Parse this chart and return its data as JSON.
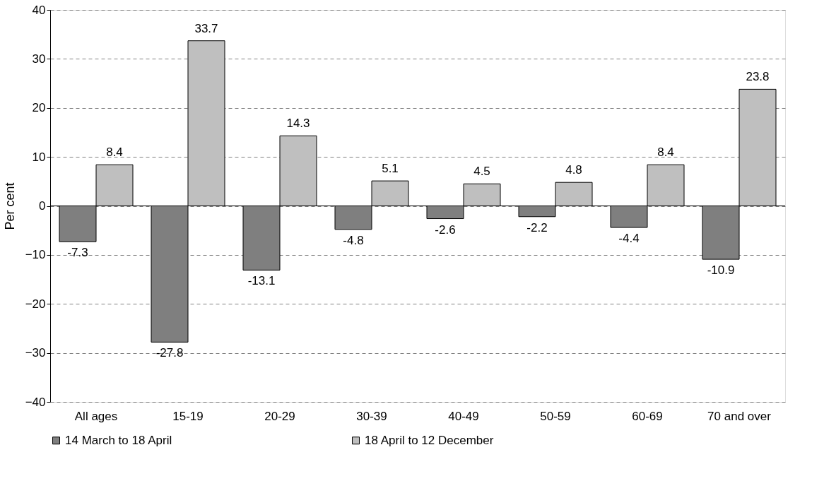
{
  "chart_data": {
    "type": "bar",
    "ylabel": "Per cent",
    "categories": [
      "All ages",
      "15-19",
      "20-29",
      "30-39",
      "40-49",
      "50-59",
      "60-69",
      "70 and over"
    ],
    "series": [
      {
        "name": "14 March to 18 April",
        "color": "#7f7f7f",
        "values": [
          -7.3,
          -27.8,
          -13.1,
          -4.8,
          -2.6,
          -2.2,
          -4.4,
          -10.9
        ]
      },
      {
        "name": "18 April to 12 December",
        "color": "#bfbfbf",
        "values": [
          8.4,
          33.7,
          14.3,
          5.1,
          4.5,
          4.8,
          8.4,
          23.8
        ]
      }
    ],
    "ylim": [
      -40,
      40
    ],
    "yticks": [
      -40,
      -30,
      -20,
      -10,
      0,
      10,
      20,
      30,
      40
    ],
    "grid": "y",
    "legend": "bottom",
    "data_labels": true
  }
}
